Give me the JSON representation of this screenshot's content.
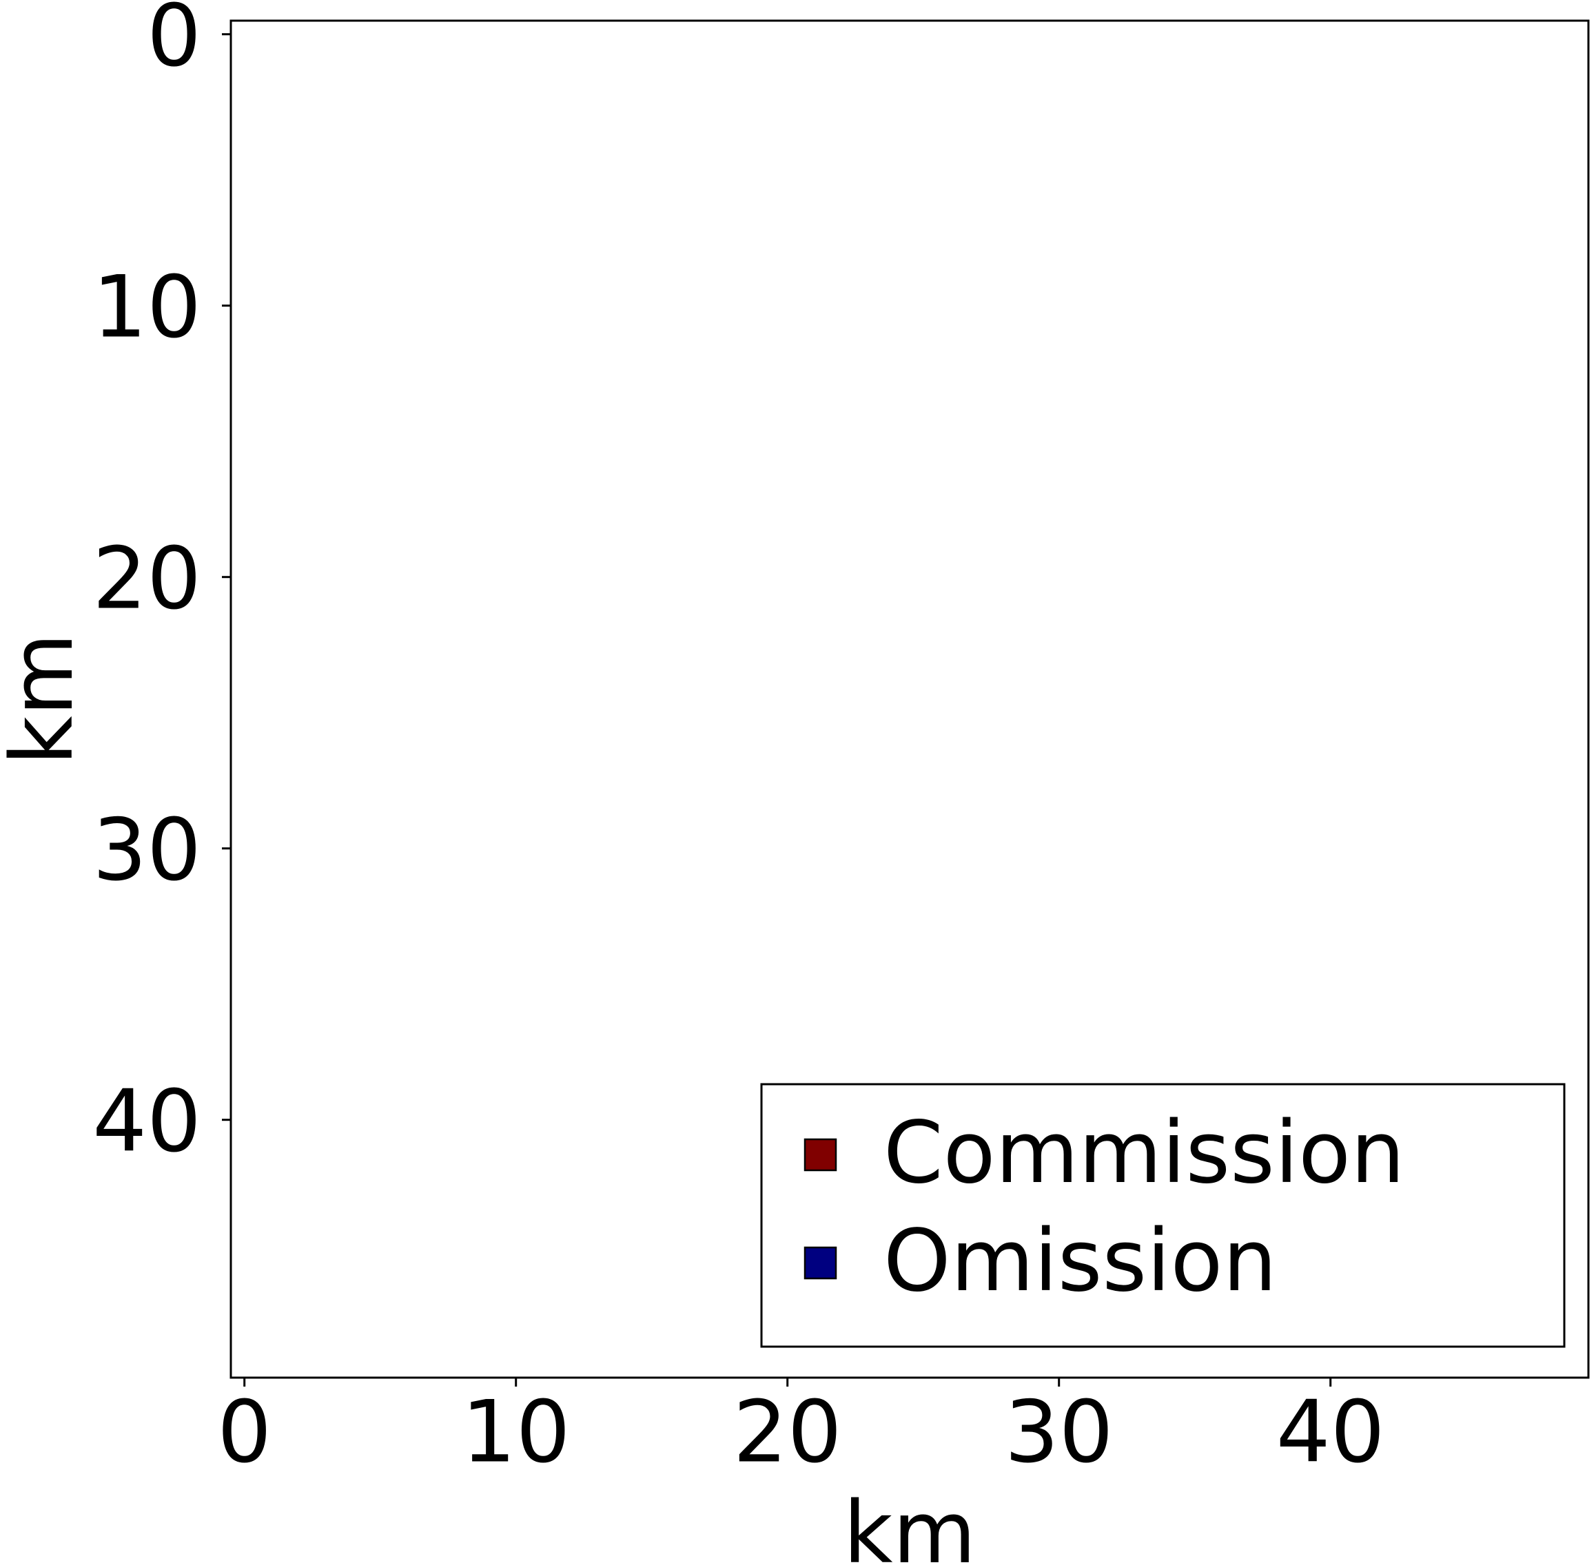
{
  "chart_data": {
    "type": "heatmap",
    "title": "",
    "xlabel": "km",
    "ylabel": "km",
    "xlim": [
      -0.5,
      49.5
    ],
    "ylim": [
      49.5,
      -0.5
    ],
    "y_inverted": true,
    "x_ticks": [
      "0",
      "10",
      "20",
      "30",
      "40"
    ],
    "y_ticks": [
      "0",
      "10",
      "20",
      "30",
      "40"
    ],
    "grid": false,
    "values": [],
    "legend": {
      "placement": "lower-right",
      "entries": [
        {
          "label": "Commission",
          "color": "#800000"
        },
        {
          "label": "Omission",
          "color": "#000080"
        }
      ]
    }
  }
}
